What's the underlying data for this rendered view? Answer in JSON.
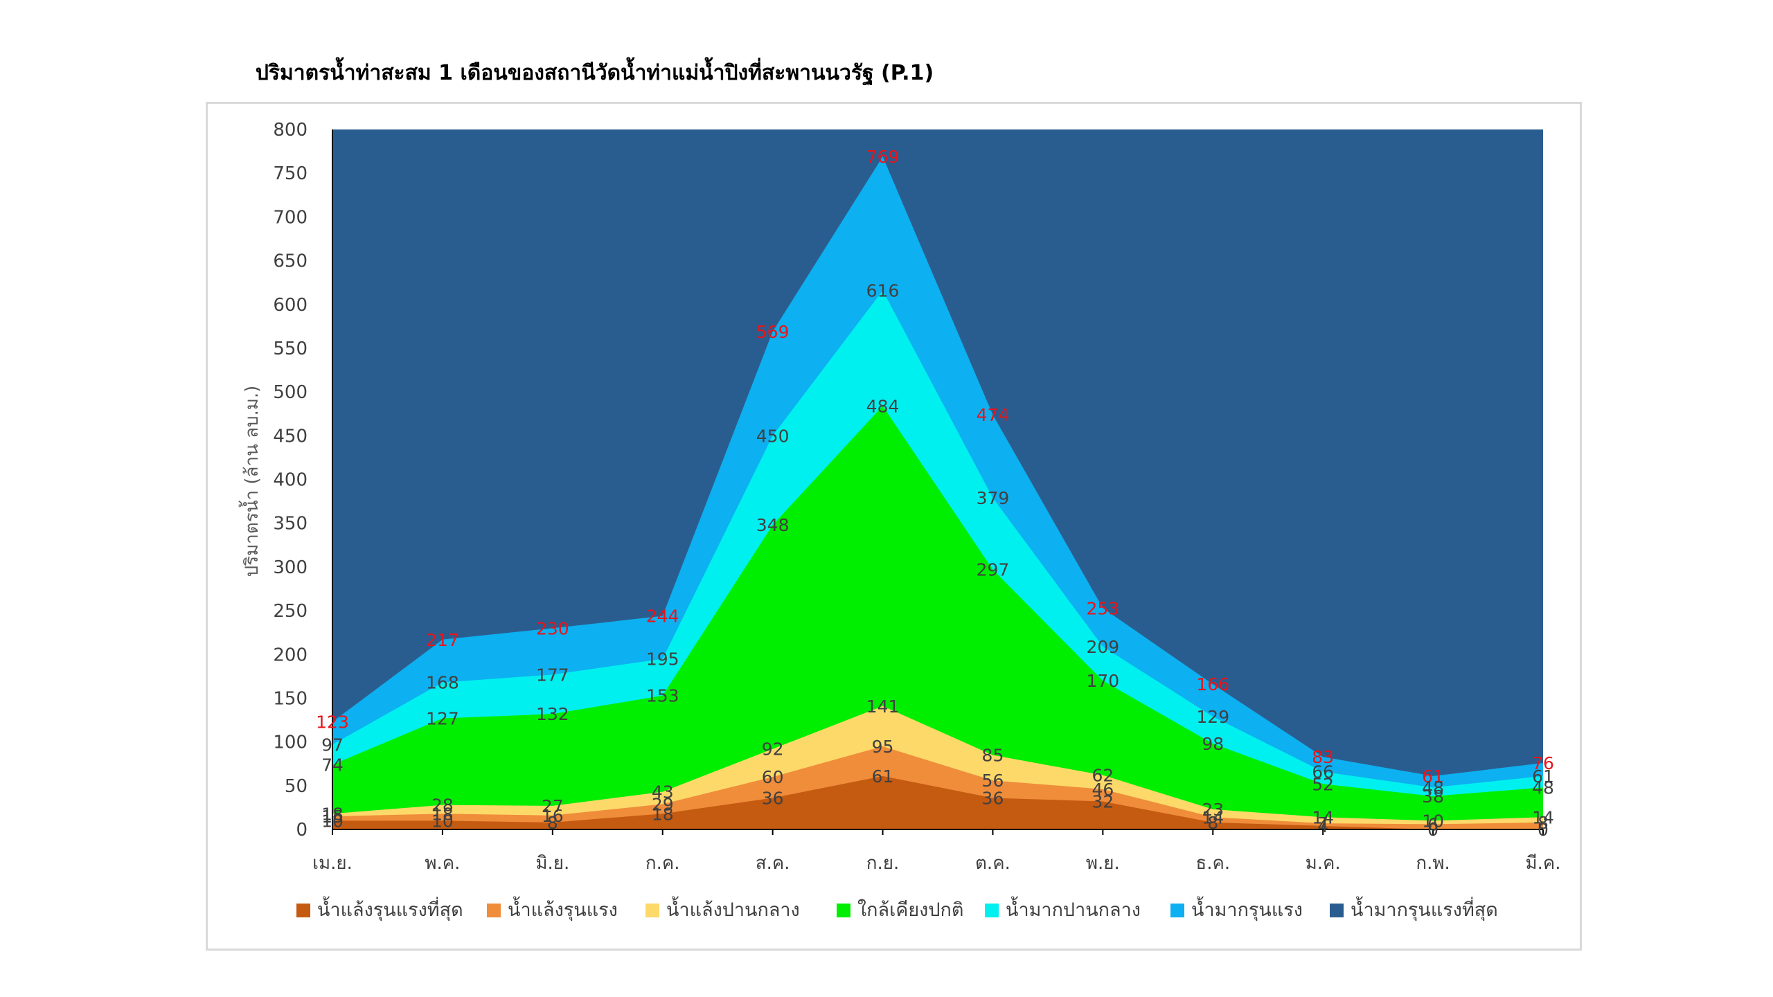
{
  "chart_data": {
    "type": "area",
    "stacked": false,
    "title": "ปริมาตรน้ำท่าสะสม 1 เดือนของสถานีวัดน้ำท่าแม่น้ำปิงที่สะพานนวรัฐ (P.1)",
    "xlabel": "",
    "ylabel": "ปริมาตรน้ำ (ล้าน ลบ.ม.)",
    "ylim": [
      0,
      800
    ],
    "yticks": [
      0,
      50,
      100,
      150,
      200,
      250,
      300,
      350,
      400,
      450,
      500,
      550,
      600,
      650,
      700,
      750,
      800
    ],
    "categories": [
      "เม.ย.",
      "พ.ค.",
      "มิ.ย.",
      "ก.ค.",
      "ส.ค.",
      "ก.ย.",
      "ต.ค.",
      "พ.ย.",
      "ธ.ค.",
      "ม.ค.",
      "ก.พ.",
      "มี.ค."
    ],
    "legend_position": "bottom",
    "grid": false,
    "series": [
      {
        "name": "น้ำมากรุนแรงที่สุด",
        "color": "#2a5d8f",
        "fill_to_top": true,
        "values": [
          123,
          217,
          230,
          244,
          569,
          769,
          474,
          253,
          166,
          83,
          61,
          76
        ]
      },
      {
        "name": "น้ำมากรุนแรง",
        "color": "#0db0f0",
        "values": [
          123,
          217,
          230,
          244,
          569,
          769,
          474,
          253,
          166,
          83,
          61,
          76
        ]
      },
      {
        "name": "น้ำมากปานกลาง",
        "color": "#00f0f0",
        "values": [
          97,
          168,
          177,
          195,
          450,
          616,
          379,
          209,
          129,
          66,
          48,
          61
        ]
      },
      {
        "name": "ใกล้เคียงปกติ",
        "color": "#00ee00",
        "values": [
          74,
          127,
          132,
          153,
          348,
          484,
          297,
          170,
          98,
          52,
          38,
          48
        ]
      },
      {
        "name": "น้ำแล้งปานกลาง",
        "color": "#fdd96a",
        "values": [
          18,
          28,
          27,
          43,
          92,
          141,
          85,
          62,
          23,
          14,
          10,
          14
        ]
      },
      {
        "name": "น้ำแล้งรุนแรง",
        "color": "#ef8d3a",
        "values": [
          15,
          18,
          16,
          29,
          60,
          95,
          56,
          46,
          14,
          7,
          6,
          8
        ]
      },
      {
        "name": "น้ำแล้งรุนแรงที่สุด",
        "color": "#c55a11",
        "values": [
          10,
          10,
          8,
          18,
          36,
          61,
          36,
          32,
          8,
          4,
          0,
          0
        ]
      }
    ],
    "legend_order": [
      "น้ำแล้งรุนแรงที่สุด",
      "น้ำแล้งรุนแรง",
      "น้ำแล้งปานกลาง",
      "ใกล้เคียงปกติ",
      "น้ำมากปานกลาง",
      "น้ำมากรุนแรง",
      "น้ำมากรุนแรงที่สุด"
    ],
    "label_colors": {
      "default": "#404040",
      "top": "#e8151b"
    }
  }
}
